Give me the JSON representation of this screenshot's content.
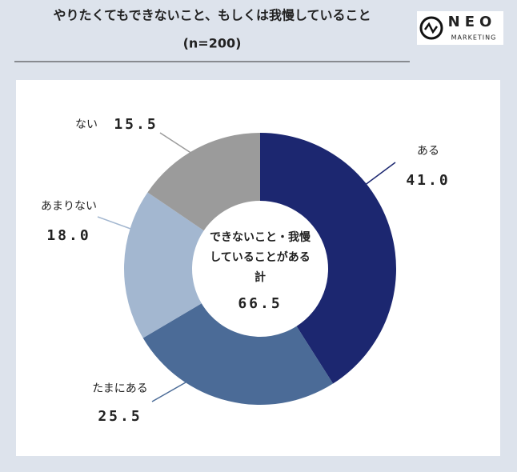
{
  "header": {
    "title": "やりたくてもできないこと、もしくは我慢していること",
    "subtitle": "(n=200)",
    "logo": {
      "name": "NEO",
      "tagline": "MARKETING"
    }
  },
  "chart_data": {
    "type": "donut",
    "categories": [
      "ある",
      "たまにある",
      "あまりない",
      "ない"
    ],
    "values": [
      41.0,
      25.5,
      18.0,
      15.5
    ],
    "value_labels": [
      "41.0",
      "25.5",
      "18.0",
      "15.5"
    ],
    "colors": [
      "#1c2770",
      "#4b6b97",
      "#a3b7d0",
      "#9b9b9b"
    ],
    "center": {
      "lines": [
        "できないこと・我慢",
        "していることがある",
        "計"
      ],
      "total": 66.5
    }
  }
}
